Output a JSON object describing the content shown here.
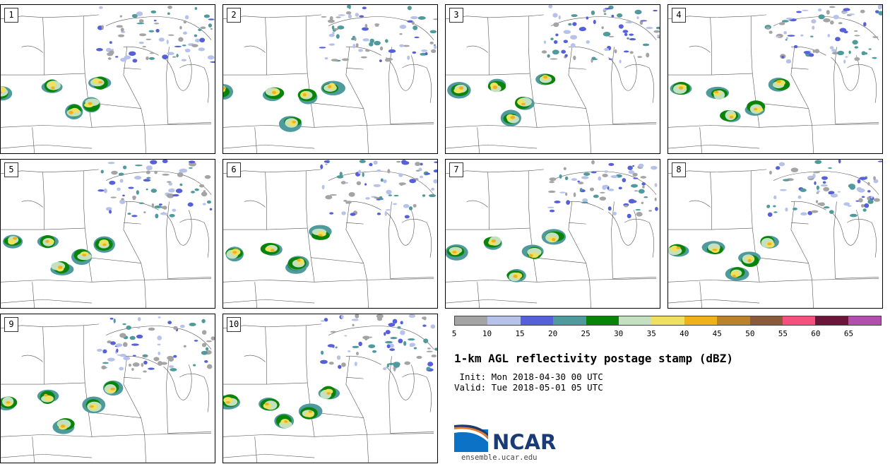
{
  "panels": [
    {
      "label": "1"
    },
    {
      "label": "2"
    },
    {
      "label": "3"
    },
    {
      "label": "4"
    },
    {
      "label": "5"
    },
    {
      "label": "6"
    },
    {
      "label": "7"
    },
    {
      "label": "8"
    },
    {
      "label": "9"
    },
    {
      "label": "10"
    }
  ],
  "colorbar": {
    "colors": [
      "#a4a4a4",
      "#b6c2ea",
      "#5660d8",
      "#4f9a9c",
      "#088508",
      "#c3e0c0",
      "#efe061",
      "#efb21a",
      "#b9822b",
      "#8a5a3c",
      "#f5517e",
      "#6b1638",
      "#b14fac"
    ],
    "tick_labels": [
      "5",
      "10",
      "15",
      "20",
      "25",
      "30",
      "35",
      "40",
      "45",
      "50",
      "55",
      "60",
      "65"
    ]
  },
  "title": "1-km AGL reflectivity postage stamp (dBZ)",
  "init": " Init: Mon 2018-04-30 00 UTC",
  "valid": "Valid: Tue 2018-05-01 05 UTC",
  "logo": {
    "text": "NCAR",
    "site": "ensemble.ucar.edu"
  }
}
